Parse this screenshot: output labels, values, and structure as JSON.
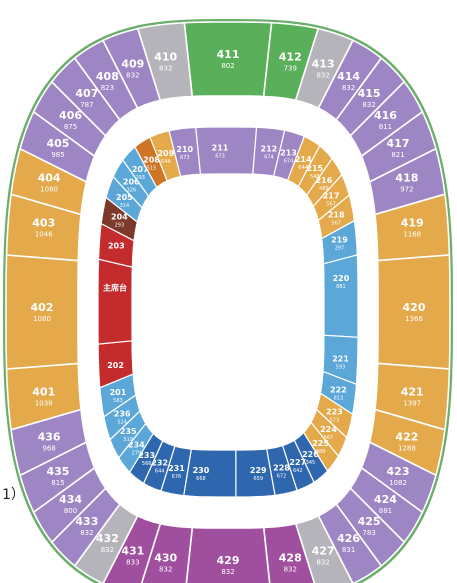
{
  "side_label": "1）",
  "colors": {
    "purple": "#9E86C4",
    "magenta": "#A04E9E",
    "grey": "#B5B4BA",
    "green": "#5AAF5A",
    "orange": "#E3A94A",
    "darkblue": "#2E67AD",
    "lightblue": "#5AA7D8",
    "red": "#C42B2C",
    "darkred": "#7C3A2A",
    "brown": "#CE7426",
    "ring_green": "#6BAE6B"
  },
  "outer_sections": [
    {
      "num": "401",
      "cap": "1038",
      "color": "orange"
    },
    {
      "num": "402",
      "cap": "1080",
      "color": "orange"
    },
    {
      "num": "403",
      "cap": "1046",
      "color": "orange"
    },
    {
      "num": "404",
      "cap": "1080",
      "color": "orange"
    },
    {
      "num": "405",
      "cap": "985",
      "color": "purple"
    },
    {
      "num": "406",
      "cap": "875",
      "color": "purple"
    },
    {
      "num": "407",
      "cap": "787",
      "color": "purple"
    },
    {
      "num": "408",
      "cap": "823",
      "color": "purple"
    },
    {
      "num": "409",
      "cap": "832",
      "color": "purple"
    },
    {
      "num": "410",
      "cap": "832",
      "color": "grey"
    },
    {
      "num": "411",
      "cap": "802",
      "color": "green"
    },
    {
      "num": "412",
      "cap": "739",
      "color": "green"
    },
    {
      "num": "413",
      "cap": "832",
      "color": "grey"
    },
    {
      "num": "414",
      "cap": "832",
      "color": "purple"
    },
    {
      "num": "415",
      "cap": "832",
      "color": "purple"
    },
    {
      "num": "416",
      "cap": "811",
      "color": "purple"
    },
    {
      "num": "417",
      "cap": "821",
      "color": "purple"
    },
    {
      "num": "418",
      "cap": "972",
      "color": "purple"
    },
    {
      "num": "419",
      "cap": "1168",
      "color": "orange"
    },
    {
      "num": "420",
      "cap": "1366",
      "color": "orange"
    },
    {
      "num": "421",
      "cap": "1397",
      "color": "orange"
    },
    {
      "num": "422",
      "cap": "1288",
      "color": "orange"
    },
    {
      "num": "423",
      "cap": "1082",
      "color": "purple"
    },
    {
      "num": "424",
      "cap": "881",
      "color": "purple"
    },
    {
      "num": "425",
      "cap": "783",
      "color": "purple"
    },
    {
      "num": "426",
      "cap": "831",
      "color": "purple"
    },
    {
      "num": "427",
      "cap": "832",
      "color": "grey"
    },
    {
      "num": "428",
      "cap": "832",
      "color": "magenta"
    },
    {
      "num": "429",
      "cap": "832",
      "color": "magenta"
    },
    {
      "num": "430",
      "cap": "832",
      "color": "magenta"
    },
    {
      "num": "431",
      "cap": "833",
      "color": "magenta"
    },
    {
      "num": "432",
      "cap": "832",
      "color": "grey"
    },
    {
      "num": "433",
      "cap": "832",
      "color": "purple"
    },
    {
      "num": "434",
      "cap": "800",
      "color": "purple"
    },
    {
      "num": "435",
      "cap": "815",
      "color": "purple"
    },
    {
      "num": "436",
      "cap": "968",
      "color": "purple"
    }
  ],
  "inner_sections": [
    {
      "num": "201",
      "cap": "583",
      "color": "lightblue"
    },
    {
      "num": "202",
      "cap": "",
      "color": "red"
    },
    {
      "num": "主席台",
      "cap": "",
      "color": "red"
    },
    {
      "num": "203",
      "cap": "",
      "color": "red"
    },
    {
      "num": "204",
      "cap": "293",
      "color": "darkred"
    },
    {
      "num": "205",
      "cap": "314",
      "color": "lightblue"
    },
    {
      "num": "206",
      "cap": "326",
      "color": "lightblue"
    },
    {
      "num": "207",
      "cap": "293",
      "color": "lightblue"
    },
    {
      "num": "208",
      "cap": "515",
      "color": "brown"
    },
    {
      "num": "209",
      "cap": "644",
      "color": "orange"
    },
    {
      "num": "210",
      "cap": "673",
      "color": "purple"
    },
    {
      "num": "211",
      "cap": "673",
      "color": "purple"
    },
    {
      "num": "212",
      "cap": "674",
      "color": "purple"
    },
    {
      "num": "213",
      "cap": "674",
      "color": "purple"
    },
    {
      "num": "214",
      "cap": "644",
      "color": "orange"
    },
    {
      "num": "215",
      "cap": "548",
      "color": "orange"
    },
    {
      "num": "216",
      "cap": "489",
      "color": "orange"
    },
    {
      "num": "217",
      "cap": "567",
      "color": "orange"
    },
    {
      "num": "218",
      "cap": "567",
      "color": "orange"
    },
    {
      "num": "219",
      "cap": "297",
      "color": "lightblue"
    },
    {
      "num": "220",
      "cap": "881",
      "color": "lightblue"
    },
    {
      "num": "221",
      "cap": "593",
      "color": "lightblue"
    },
    {
      "num": "222",
      "cap": "813",
      "color": "lightblue"
    },
    {
      "num": "223",
      "cap": "573",
      "color": "orange"
    },
    {
      "num": "224",
      "cap": "567",
      "color": "orange"
    },
    {
      "num": "225",
      "cap": "489",
      "color": "orange"
    },
    {
      "num": "226",
      "cap": "345",
      "color": "darkblue"
    },
    {
      "num": "227",
      "cap": "642",
      "color": "darkblue"
    },
    {
      "num": "228",
      "cap": "672",
      "color": "darkblue"
    },
    {
      "num": "229",
      "cap": "659",
      "color": "darkblue"
    },
    {
      "num": "230",
      "cap": "668",
      "color": "darkblue"
    },
    {
      "num": "231",
      "cap": "676",
      "color": "darkblue"
    },
    {
      "num": "232",
      "cap": "644",
      "color": "darkblue"
    },
    {
      "num": "233",
      "cap": "566",
      "color": "darkblue"
    },
    {
      "num": "234",
      "cap": "279",
      "color": "lightblue"
    },
    {
      "num": "235",
      "cap": "519",
      "color": "lightblue"
    },
    {
      "num": "236",
      "cap": "524",
      "color": "lightblue"
    }
  ]
}
